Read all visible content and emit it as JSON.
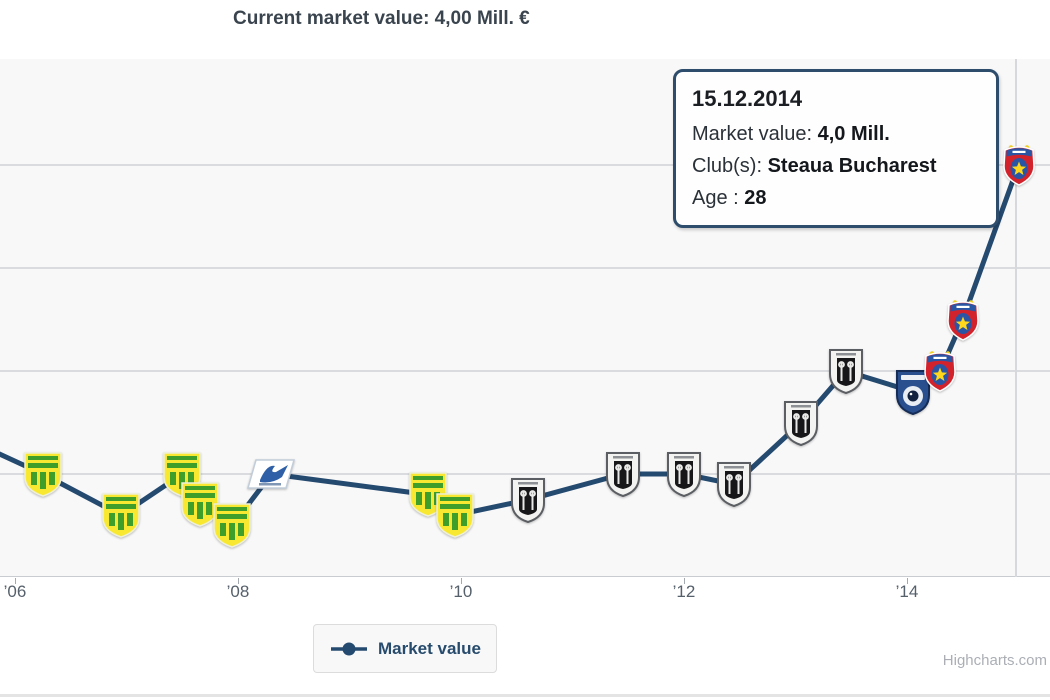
{
  "header": {
    "title": "Current market value: 4,00 Mill. €"
  },
  "tooltip": {
    "date": "15.12.2014",
    "rows": [
      {
        "label": "Market value: ",
        "value": "4,0 Mill."
      },
      {
        "label": "Club(s): ",
        "value": "Steaua Bucharest"
      },
      {
        "label": "Age : ",
        "value": "28"
      }
    ]
  },
  "legend": {
    "items": [
      {
        "label": "Market value",
        "symbol": "line-dot"
      }
    ]
  },
  "credits": {
    "label": "Highcharts.com"
  },
  "colors": {
    "line": "#254a70",
    "grid": "#d9dbde",
    "plot_background": "#f8f8f9",
    "title_text": "#3a444e",
    "axis_label": "#56606b",
    "tooltip_border": "#2e4d6d",
    "legend_text": "#274b6d",
    "credits_text": "#abafb5"
  },
  "chart_data": {
    "type": "line",
    "title": "Current market value: 4,00 Mill. €",
    "unit": "Mill. €",
    "grid": "horizontal-only",
    "legend_position": "bottom-center",
    "x_axis": {
      "ticks": [
        {
          "label": "’06",
          "year": 2006
        },
        {
          "label": "’08",
          "year": 2008
        },
        {
          "label": "’10",
          "year": 2010
        },
        {
          "label": "’12",
          "year": 2012
        },
        {
          "label": "’14",
          "year": 2014
        }
      ]
    },
    "y_axis": {
      "min": 0,
      "max": 4,
      "gridline_values": [
        1,
        2,
        3,
        4
      ],
      "labels_visible": false
    },
    "series": [
      {
        "name": "Market value",
        "points": [
          {
            "year": 2005.75,
            "value": 1.25,
            "icon": null,
            "note": "line enters from left edge"
          },
          {
            "year": 2006.25,
            "value": 1.0,
            "icon": "nantes"
          },
          {
            "year": 2006.95,
            "value": 0.6,
            "icon": "nantes"
          },
          {
            "year": 2007.5,
            "value": 1.0,
            "icon": "nantes"
          },
          {
            "year": 2007.66,
            "value": 0.7,
            "icon": "nantes"
          },
          {
            "year": 2007.95,
            "value": 0.5,
            "icon": "nantes"
          },
          {
            "year": 2008.3,
            "value": 1.0,
            "icon": "libourne"
          },
          {
            "year": 2009.7,
            "value": 0.8,
            "icon": "nantes"
          },
          {
            "year": 2009.95,
            "value": 0.6,
            "icon": "nantes"
          },
          {
            "year": 2010.6,
            "value": 0.75,
            "icon": "angers"
          },
          {
            "year": 2011.45,
            "value": 1.0,
            "icon": "angers"
          },
          {
            "year": 2012.0,
            "value": 1.0,
            "icon": "angers"
          },
          {
            "year": 2012.45,
            "value": 0.9,
            "icon": "angers"
          },
          {
            "year": 2013.05,
            "value": 1.5,
            "icon": "angers"
          },
          {
            "year": 2013.45,
            "value": 2.0,
            "icon": "angers"
          },
          {
            "year": 2014.05,
            "value": 1.8,
            "icon": "bastia"
          },
          {
            "year": 2014.3,
            "value": 2.0,
            "icon": "steaua"
          },
          {
            "year": 2014.5,
            "value": 2.5,
            "icon": "steaua"
          },
          {
            "year": 2015.0,
            "value": 4.0,
            "icon": "steaua",
            "date": "15.12.2014",
            "club": "Steaua Bucharest",
            "age": 28
          }
        ]
      }
    ]
  }
}
